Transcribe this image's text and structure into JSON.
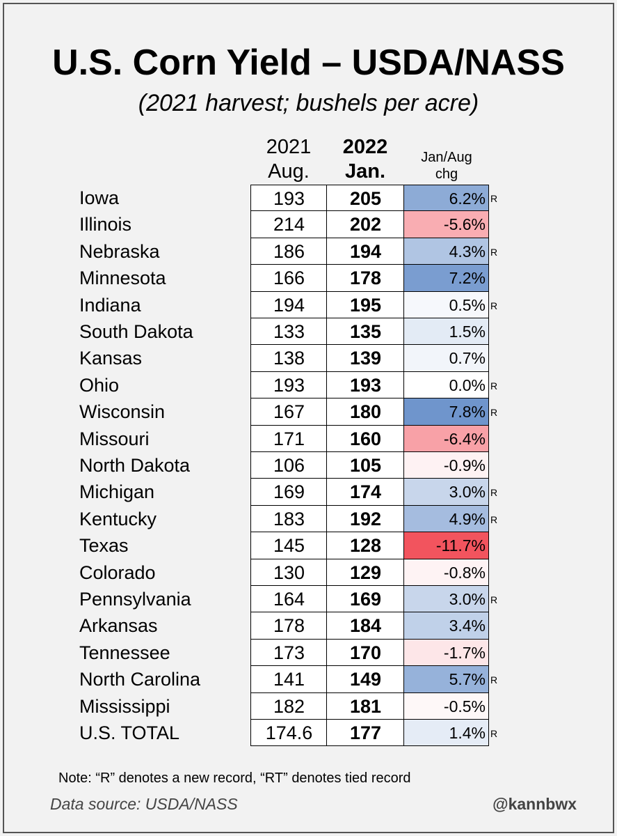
{
  "title": "U.S. Corn Yield – USDA/NASS",
  "subtitle": "(2021 harvest; bushels per acre)",
  "headers": {
    "aug_year": "2021",
    "aug_month": "Aug.",
    "jan_year": "2022",
    "jan_month": "Jan.",
    "chg_line1": "Jan/Aug",
    "chg_line2": "chg"
  },
  "note": "Note: “R” denotes a new record, “RT” denotes tied record",
  "source": "Data source: USDA/NASS",
  "handle": "@kannbwx",
  "colors": {
    "positive": "#6f95cc",
    "negative": "#f2545e",
    "neutral": "#ffffff"
  },
  "chart_data": {
    "type": "table",
    "title": "U.S. Corn Yield – USDA/NASS",
    "subtitle": "(2021 harvest; bushels per acre)",
    "columns": [
      "",
      "2021 Aug.",
      "2022 Jan.",
      "Jan/Aug chg"
    ],
    "rows": [
      {
        "state": "Iowa",
        "aug": "193",
        "jan": "205",
        "chg": "6.2%",
        "chg_value": 6.2,
        "record": "R"
      },
      {
        "state": "Illinois",
        "aug": "214",
        "jan": "202",
        "chg": "-5.6%",
        "chg_value": -5.6,
        "record": ""
      },
      {
        "state": "Nebraska",
        "aug": "186",
        "jan": "194",
        "chg": "4.3%",
        "chg_value": 4.3,
        "record": "R"
      },
      {
        "state": "Minnesota",
        "aug": "166",
        "jan": "178",
        "chg": "7.2%",
        "chg_value": 7.2,
        "record": ""
      },
      {
        "state": "Indiana",
        "aug": "194",
        "jan": "195",
        "chg": "0.5%",
        "chg_value": 0.5,
        "record": "R"
      },
      {
        "state": "South Dakota",
        "aug": "133",
        "jan": "135",
        "chg": "1.5%",
        "chg_value": 1.5,
        "record": ""
      },
      {
        "state": "Kansas",
        "aug": "138",
        "jan": "139",
        "chg": "0.7%",
        "chg_value": 0.7,
        "record": ""
      },
      {
        "state": "Ohio",
        "aug": "193",
        "jan": "193",
        "chg": "0.0%",
        "chg_value": 0.0,
        "record": "R"
      },
      {
        "state": "Wisconsin",
        "aug": "167",
        "jan": "180",
        "chg": "7.8%",
        "chg_value": 7.8,
        "record": "R"
      },
      {
        "state": "Missouri",
        "aug": "171",
        "jan": "160",
        "chg": "-6.4%",
        "chg_value": -6.4,
        "record": ""
      },
      {
        "state": "North Dakota",
        "aug": "106",
        "jan": "105",
        "chg": "-0.9%",
        "chg_value": -0.9,
        "record": ""
      },
      {
        "state": "Michigan",
        "aug": "169",
        "jan": "174",
        "chg": "3.0%",
        "chg_value": 3.0,
        "record": "R"
      },
      {
        "state": "Kentucky",
        "aug": "183",
        "jan": "192",
        "chg": "4.9%",
        "chg_value": 4.9,
        "record": "R"
      },
      {
        "state": "Texas",
        "aug": "145",
        "jan": "128",
        "chg": "-11.7%",
        "chg_value": -11.7,
        "record": ""
      },
      {
        "state": "Colorado",
        "aug": "130",
        "jan": "129",
        "chg": "-0.8%",
        "chg_value": -0.8,
        "record": ""
      },
      {
        "state": "Pennsylvania",
        "aug": "164",
        "jan": "169",
        "chg": "3.0%",
        "chg_value": 3.0,
        "record": "R"
      },
      {
        "state": "Arkansas",
        "aug": "178",
        "jan": "184",
        "chg": "3.4%",
        "chg_value": 3.4,
        "record": ""
      },
      {
        "state": "Tennessee",
        "aug": "173",
        "jan": "170",
        "chg": "-1.7%",
        "chg_value": -1.7,
        "record": ""
      },
      {
        "state": "North Carolina",
        "aug": "141",
        "jan": "149",
        "chg": "5.7%",
        "chg_value": 5.7,
        "record": "R"
      },
      {
        "state": "Mississippi",
        "aug": "182",
        "jan": "181",
        "chg": "-0.5%",
        "chg_value": -0.5,
        "record": ""
      },
      {
        "state": "U.S. TOTAL",
        "aug": "174.6",
        "jan": "177",
        "chg": "1.4%",
        "chg_value": 1.4,
        "record": "R"
      }
    ]
  }
}
